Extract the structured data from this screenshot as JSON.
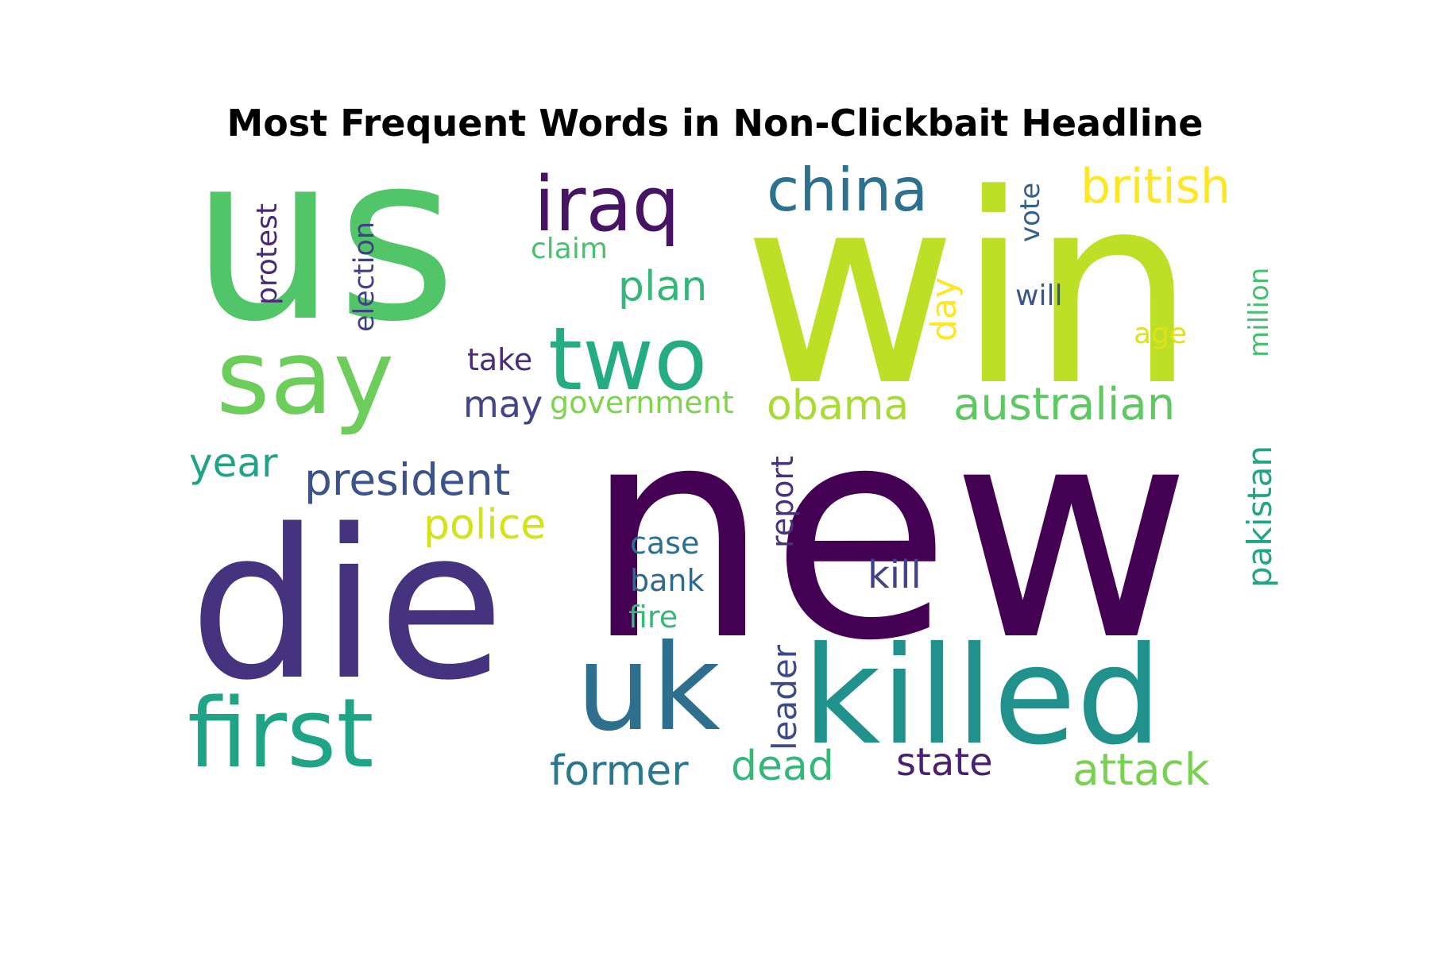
{
  "title": "Most Frequent Words in Non-Clickbait Headline",
  "words": [
    {
      "text": "new",
      "color": "#440154"
    },
    {
      "text": "win",
      "color": "#bddf26"
    },
    {
      "text": "us",
      "color": "#52c569"
    },
    {
      "text": "die",
      "color": "#46337f"
    },
    {
      "text": "say",
      "color": "#6ccd5a"
    },
    {
      "text": "killed",
      "color": "#21918c"
    },
    {
      "text": "uk",
      "color": "#2e6f8e"
    },
    {
      "text": "first",
      "color": "#20a486"
    },
    {
      "text": "two",
      "color": "#25ac82"
    },
    {
      "text": "iraq",
      "color": "#471365"
    },
    {
      "text": "china",
      "color": "#2c728e"
    },
    {
      "text": "british",
      "color": "#fde725"
    },
    {
      "text": "australian",
      "color": "#5ec962"
    },
    {
      "text": "obama",
      "color": "#a8db34"
    },
    {
      "text": "president",
      "color": "#3b528b"
    },
    {
      "text": "attack",
      "color": "#7ad151"
    },
    {
      "text": "former",
      "color": "#2a788e"
    },
    {
      "text": "dead",
      "color": "#35b779"
    },
    {
      "text": "state",
      "color": "#482173"
    },
    {
      "text": "plan",
      "color": "#35b779"
    },
    {
      "text": "police",
      "color": "#d2e21b"
    },
    {
      "text": "year",
      "color": "#20a386"
    },
    {
      "text": "kill",
      "color": "#404387"
    },
    {
      "text": "may",
      "color": "#414487"
    },
    {
      "text": "pakistan",
      "color": "#21a585"
    },
    {
      "text": "government",
      "color": "#7fd34e"
    },
    {
      "text": "take",
      "color": "#472d7b"
    },
    {
      "text": "claim",
      "color": "#4ac16d"
    },
    {
      "text": "will",
      "color": "#39568c"
    },
    {
      "text": "age",
      "color": "#dde318"
    },
    {
      "text": "case",
      "color": "#2d708e"
    },
    {
      "text": "bank",
      "color": "#31688e"
    },
    {
      "text": "fire",
      "color": "#37b878"
    },
    {
      "text": "protest",
      "color": "#482878"
    },
    {
      "text": "election",
      "color": "#424086"
    },
    {
      "text": "vote",
      "color": "#355f8d"
    },
    {
      "text": "day",
      "color": "#fde725"
    },
    {
      "text": "million",
      "color": "#44bf70"
    },
    {
      "text": "report",
      "color": "#46327e"
    },
    {
      "text": "leader",
      "color": "#3e4989"
    }
  ]
}
